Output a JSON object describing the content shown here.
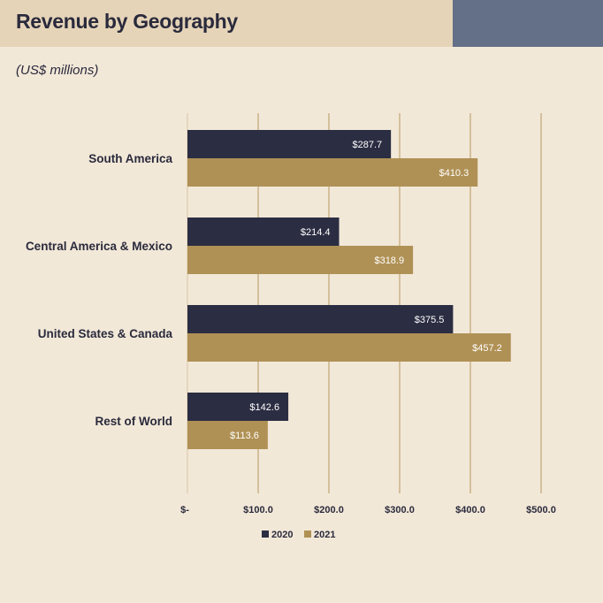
{
  "header": {
    "title": "Revenue by Geography",
    "subtitle": "(US$ millions)"
  },
  "colors": {
    "series_2020": "#2b2d42",
    "series_2021": "#b09155",
    "grid": "#b09155",
    "title_band": "#e5d4b8",
    "title_block": "#646f88",
    "background": "#f2e8d8"
  },
  "chart_data": {
    "type": "bar",
    "orientation": "horizontal",
    "title": "Revenue by Geography",
    "subtitle": "(US$ millions)",
    "xlabel": "",
    "ylabel": "",
    "categories": [
      "South America",
      "Central America & Mexico",
      "United States & Canada",
      "Rest of World"
    ],
    "series": [
      {
        "name": "2020",
        "values": [
          287.7,
          214.4,
          375.5,
          142.6
        ],
        "labels": [
          "$287.7",
          "$214.4",
          "$375.5",
          "$142.6"
        ]
      },
      {
        "name": "2021",
        "values": [
          410.3,
          318.9,
          457.2,
          113.6
        ],
        "labels": [
          "$410.3",
          "$318.9",
          "$457.2",
          "$113.6"
        ]
      }
    ],
    "xlim": [
      0,
      500
    ],
    "xticks": [
      0,
      100,
      200,
      300,
      400,
      500
    ],
    "xtick_labels": [
      "$-",
      "$100.0",
      "$200.0",
      "$300.0",
      "$400.0",
      "$500.0"
    ],
    "grid": "vertical",
    "legend_position": "bottom"
  }
}
